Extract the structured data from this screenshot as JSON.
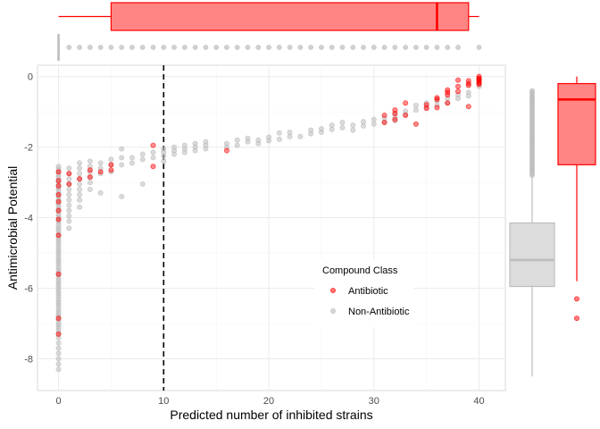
{
  "chart_data": {
    "type": "scatter",
    "xlabel": "Predicted number of inhibited strains",
    "ylabel": "Antimicrobial Potential",
    "xlim": [
      -2,
      42.5
    ],
    "ylim": [
      -8.9,
      0.32
    ],
    "x_ticks": [
      0,
      10,
      20,
      30,
      40
    ],
    "y_ticks": [
      0,
      -2,
      -4,
      -6,
      -8
    ],
    "grid": true,
    "threshold_line": {
      "x": 10,
      "style": "dashed",
      "color": "#000000"
    },
    "colors": {
      "antibiotic": "#ff0000",
      "non_antibiotic": "#bdbdbd",
      "non_antibiotic_box_fill": "#dcdcdc"
    },
    "legend": {
      "title": "Compound Class",
      "placement": "lower-right",
      "entries": [
        {
          "label": "Antibiotic",
          "color": "#ff0000"
        },
        {
          "label": "Non-Antibiotic",
          "color": "#bdbdbd"
        }
      ]
    },
    "series": [
      {
        "key": "non_antibiotic",
        "points": [
          [
            0,
            -2.55
          ],
          [
            0,
            -2.62
          ],
          [
            0,
            -2.7
          ],
          [
            0,
            -2.78
          ],
          [
            0,
            -2.85
          ],
          [
            0,
            -2.93
          ],
          [
            0,
            -3.0
          ],
          [
            0,
            -3.08
          ],
          [
            0,
            -3.15
          ],
          [
            0,
            -3.22
          ],
          [
            0,
            -3.3
          ],
          [
            0,
            -3.38
          ],
          [
            0,
            -3.45
          ],
          [
            0,
            -3.52
          ],
          [
            0,
            -3.6
          ],
          [
            0,
            -3.68
          ],
          [
            0,
            -3.75
          ],
          [
            0,
            -3.82
          ],
          [
            0,
            -3.9
          ],
          [
            0,
            -3.98
          ],
          [
            0,
            -4.05
          ],
          [
            0,
            -4.12
          ],
          [
            0,
            -4.2
          ],
          [
            0,
            -4.28
          ],
          [
            0,
            -4.35
          ],
          [
            0,
            -4.42
          ],
          [
            0,
            -4.5
          ],
          [
            0,
            -4.58
          ],
          [
            0,
            -4.65
          ],
          [
            0,
            -4.72
          ],
          [
            0,
            -4.8
          ],
          [
            0,
            -4.88
          ],
          [
            0,
            -4.95
          ],
          [
            0,
            -5.02
          ],
          [
            0,
            -5.1
          ],
          [
            0,
            -5.18
          ],
          [
            0,
            -5.25
          ],
          [
            0,
            -5.32
          ],
          [
            0,
            -5.4
          ],
          [
            0,
            -5.48
          ],
          [
            0,
            -5.55
          ],
          [
            0,
            -5.62
          ],
          [
            0,
            -5.7
          ],
          [
            0,
            -5.78
          ],
          [
            0,
            -5.85
          ],
          [
            0,
            -5.92
          ],
          [
            0,
            -6.0
          ],
          [
            0,
            -6.08
          ],
          [
            0,
            -6.15
          ],
          [
            0,
            -6.22
          ],
          [
            0,
            -6.3
          ],
          [
            0,
            -6.38
          ],
          [
            0,
            -6.45
          ],
          [
            0,
            -6.52
          ],
          [
            0,
            -6.6
          ],
          [
            0,
            -6.68
          ],
          [
            0,
            -6.75
          ],
          [
            0,
            -6.82
          ],
          [
            0,
            -6.9
          ],
          [
            0,
            -6.98
          ],
          [
            0,
            -7.05
          ],
          [
            0,
            -7.12
          ],
          [
            0,
            -7.2
          ],
          [
            0,
            -7.28
          ],
          [
            0,
            -7.4
          ],
          [
            0,
            -7.55
          ],
          [
            0,
            -7.7
          ],
          [
            0,
            -7.85
          ],
          [
            0,
            -8.0
          ],
          [
            0,
            -8.15
          ],
          [
            0,
            -8.3
          ],
          [
            1,
            -2.6
          ],
          [
            1,
            -2.75
          ],
          [
            1,
            -2.9
          ],
          [
            1,
            -3.05
          ],
          [
            1,
            -3.2
          ],
          [
            1,
            -3.35
          ],
          [
            1,
            -3.5
          ],
          [
            1,
            -3.65
          ],
          [
            1,
            -3.8
          ],
          [
            1,
            -3.95
          ],
          [
            1,
            -4.1
          ],
          [
            1,
            -4.3
          ],
          [
            2,
            -2.45
          ],
          [
            2,
            -2.6
          ],
          [
            2,
            -2.75
          ],
          [
            2,
            -2.9
          ],
          [
            2,
            -3.05
          ],
          [
            2,
            -3.2
          ],
          [
            2,
            -3.35
          ],
          [
            2,
            -3.5
          ],
          [
            2,
            -3.7
          ],
          [
            3,
            -2.4
          ],
          [
            3,
            -2.55
          ],
          [
            3,
            -2.7
          ],
          [
            3,
            -2.85
          ],
          [
            3,
            -3.0
          ],
          [
            3,
            -3.2
          ],
          [
            4,
            -2.45
          ],
          [
            4,
            -2.6
          ],
          [
            4,
            -2.75
          ],
          [
            4,
            -3.3
          ],
          [
            5,
            -2.35
          ],
          [
            5,
            -2.5
          ],
          [
            5,
            -2.7
          ],
          [
            6,
            -2.05
          ],
          [
            6,
            -2.3
          ],
          [
            6,
            -2.5
          ],
          [
            6,
            -3.4
          ],
          [
            7,
            -2.3
          ],
          [
            7,
            -2.45
          ],
          [
            8,
            -2.2
          ],
          [
            8,
            -2.35
          ],
          [
            8,
            -3.05
          ],
          [
            9,
            -2.15
          ],
          [
            9,
            -2.3
          ],
          [
            10,
            -2.05
          ],
          [
            10,
            -2.15
          ],
          [
            10,
            -2.25
          ],
          [
            10,
            -2.4
          ],
          [
            11,
            -2.0
          ],
          [
            11,
            -2.1
          ],
          [
            11,
            -2.2
          ],
          [
            12,
            -1.95
          ],
          [
            12,
            -2.05
          ],
          [
            12,
            -2.15
          ],
          [
            13,
            -1.9
          ],
          [
            13,
            -2.0
          ],
          [
            13,
            -2.1
          ],
          [
            14,
            -1.85
          ],
          [
            14,
            -1.95
          ],
          [
            14,
            -2.05
          ],
          [
            16,
            -1.9
          ],
          [
            16,
            -2.0
          ],
          [
            17,
            -1.8
          ],
          [
            17,
            -1.95
          ],
          [
            18,
            -1.75
          ],
          [
            18,
            -1.85
          ],
          [
            19,
            -1.8
          ],
          [
            19,
            -1.9
          ],
          [
            20,
            -1.72
          ],
          [
            20,
            -1.82
          ],
          [
            21,
            -1.6
          ],
          [
            21,
            -1.78
          ],
          [
            22,
            -1.58
          ],
          [
            22,
            -1.7
          ],
          [
            23,
            -1.7
          ],
          [
            24,
            -1.52
          ],
          [
            24,
            -1.62
          ],
          [
            25,
            -1.48
          ],
          [
            25,
            -1.58
          ],
          [
            26,
            -1.38
          ],
          [
            26,
            -1.5
          ],
          [
            27,
            -1.3
          ],
          [
            27,
            -1.45
          ],
          [
            28,
            -1.38
          ],
          [
            28,
            -1.52
          ],
          [
            29,
            -1.28
          ],
          [
            29,
            -1.4
          ],
          [
            30,
            -1.22
          ],
          [
            30,
            -1.35
          ],
          [
            31,
            -1.18
          ],
          [
            31,
            -1.3
          ],
          [
            32,
            -1.05
          ],
          [
            32,
            -1.15
          ],
          [
            32,
            -1.25
          ],
          [
            33,
            -0.98
          ],
          [
            33,
            -1.08
          ],
          [
            34,
            -0.82
          ],
          [
            34,
            -0.95
          ],
          [
            35,
            -0.75
          ],
          [
            35,
            -0.88
          ],
          [
            36,
            -0.68
          ],
          [
            36,
            -0.8
          ],
          [
            37,
            -0.62
          ],
          [
            37,
            -0.75
          ],
          [
            38,
            -0.52
          ],
          [
            38,
            -0.62
          ],
          [
            39,
            -0.45
          ],
          [
            39,
            -0.55
          ],
          [
            40,
            -0.05
          ],
          [
            40,
            -0.12
          ],
          [
            40,
            -0.2
          ],
          [
            40,
            -0.28
          ]
        ]
      },
      {
        "key": "antibiotic",
        "points": [
          [
            0,
            -2.7
          ],
          [
            0,
            -2.95
          ],
          [
            0,
            -3.1
          ],
          [
            0,
            -3.35
          ],
          [
            0,
            -3.55
          ],
          [
            0,
            -3.8
          ],
          [
            0,
            -4.05
          ],
          [
            0,
            -4.5
          ],
          [
            0,
            -5.6
          ],
          [
            0,
            -6.85
          ],
          [
            0,
            -7.3
          ],
          [
            1,
            -2.75
          ],
          [
            1,
            -3.05
          ],
          [
            2,
            -2.9
          ],
          [
            3,
            -2.65
          ],
          [
            3,
            -2.85
          ],
          [
            4,
            -2.7
          ],
          [
            5,
            -2.5
          ],
          [
            5,
            -2.65
          ],
          [
            9,
            -1.95
          ],
          [
            9,
            -2.55
          ],
          [
            16,
            -2.1
          ],
          [
            31,
            -1.1
          ],
          [
            31,
            -1.3
          ],
          [
            32,
            -1.05
          ],
          [
            32,
            -0.95
          ],
          [
            32,
            -1.22
          ],
          [
            33,
            -0.75
          ],
          [
            33,
            -1.1
          ],
          [
            34,
            -1.35
          ],
          [
            35,
            -0.8
          ],
          [
            35,
            -0.9
          ],
          [
            36,
            -0.6
          ],
          [
            36,
            -0.65
          ],
          [
            36,
            -0.88
          ],
          [
            37,
            -0.38
          ],
          [
            37,
            -0.45
          ],
          [
            37,
            -0.52
          ],
          [
            37,
            -0.75
          ],
          [
            38,
            -0.1
          ],
          [
            38,
            -0.28
          ],
          [
            38,
            -0.42
          ],
          [
            39,
            -0.12
          ],
          [
            39,
            -0.2
          ],
          [
            39,
            -0.25
          ],
          [
            39,
            -0.85
          ],
          [
            40,
            0.0
          ],
          [
            40,
            -0.05
          ],
          [
            40,
            -0.08
          ],
          [
            40,
            -0.1
          ],
          [
            40,
            -0.15
          ],
          [
            40,
            -0.18
          ],
          [
            40,
            -0.22
          ]
        ]
      }
    ],
    "marginal_x": {
      "antibiotic_box": {
        "min": 0,
        "q1": 5,
        "median": 36,
        "q3": 39,
        "max": 40
      },
      "non_antibiotic_box": {
        "min": 0,
        "q1": 0,
        "median": 0,
        "q3": 0,
        "max": 0
      },
      "non_antibiotic_outliers": [
        1,
        2,
        3,
        4,
        5,
        6,
        7,
        8,
        9,
        10,
        11,
        12,
        13,
        14,
        15,
        16,
        17,
        18,
        19,
        20,
        21,
        22,
        23,
        24,
        25,
        26,
        27,
        28,
        29,
        30,
        31,
        32,
        33,
        34,
        35,
        36,
        37,
        38,
        40
      ]
    },
    "marginal_y": {
      "non_antibiotic_box": {
        "min": -8.5,
        "q1": -5.95,
        "median": -5.2,
        "q3": -4.15,
        "max": -2.85
      },
      "non_antibiotic_outliers": [
        -0.4,
        -0.45,
        -0.5,
        -0.55,
        -0.6,
        -0.65,
        -0.7,
        -0.75,
        -0.8,
        -0.85,
        -0.9,
        -0.95,
        -1.0,
        -1.05,
        -1.1,
        -1.15,
        -1.2,
        -1.25,
        -1.3,
        -1.35,
        -1.4,
        -1.45,
        -1.5,
        -1.55,
        -1.6,
        -1.65,
        -1.7,
        -1.75,
        -1.8,
        -1.85,
        -1.9,
        -1.95,
        -2.0,
        -2.05,
        -2.1,
        -2.15,
        -2.2,
        -2.25,
        -2.3,
        -2.35,
        -2.4,
        -2.45,
        -2.5,
        -2.55,
        -2.6,
        -2.65,
        -2.7,
        -2.75,
        -2.8
      ],
      "antibiotic_box": {
        "min": -5.8,
        "q1": -2.5,
        "median": -0.65,
        "q3": -0.2,
        "max": 0.0
      },
      "antibiotic_outliers": [
        -6.3,
        -6.85
      ]
    }
  }
}
